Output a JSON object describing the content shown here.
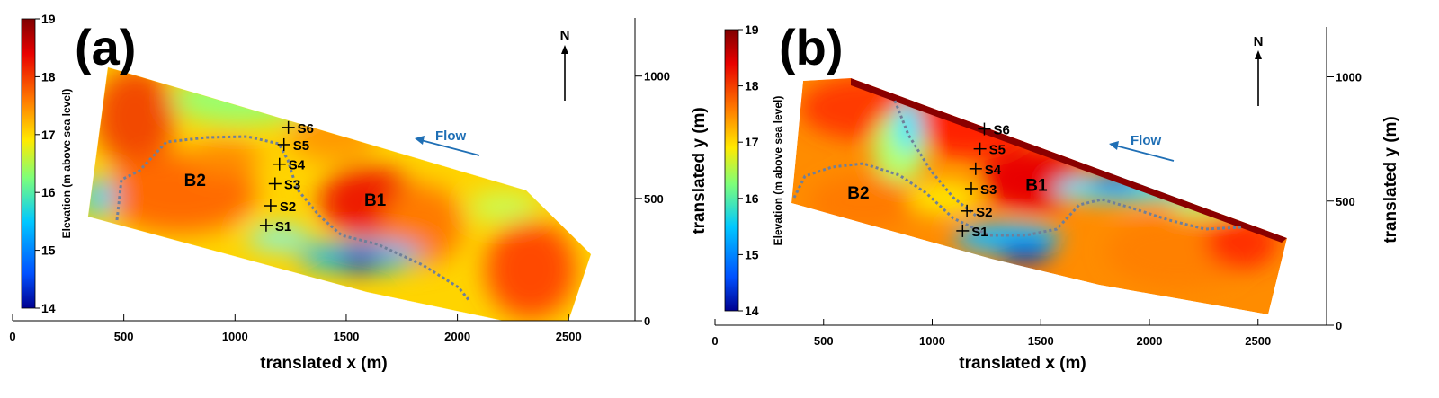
{
  "chart_data": [
    {
      "type": "heatmap",
      "panel_label": "(a)",
      "xlabel": "translated x (m)",
      "ylabel": "translated y (m)",
      "colorbar_label": "Elevation (m above sea level)",
      "xlim": [
        0,
        2800
      ],
      "ylim": [
        0,
        1200
      ],
      "x_ticks": [
        0,
        500,
        1000,
        1500,
        2000,
        2500
      ],
      "y_ticks": [
        0,
        500,
        1000
      ],
      "colorbar_range": [
        14,
        19
      ],
      "colorbar_ticks": [
        14,
        15,
        16,
        17,
        18,
        19
      ],
      "north_label": "N",
      "flow_label": "Flow",
      "survey_points": [
        {
          "label": "S1",
          "x": 1140,
          "y": 390
        },
        {
          "label": "S2",
          "x": 1160,
          "y": 470
        },
        {
          "label": "S3",
          "x": 1180,
          "y": 560
        },
        {
          "label": "S4",
          "x": 1200,
          "y": 640
        },
        {
          "label": "S5",
          "x": 1220,
          "y": 720
        },
        {
          "label": "S6",
          "x": 1240,
          "y": 790
        }
      ],
      "region_labels": [
        {
          "label": "B1",
          "x": 1630,
          "y": 470
        },
        {
          "label": "B2",
          "x": 820,
          "y": 550
        }
      ]
    },
    {
      "type": "heatmap",
      "panel_label": "(b)",
      "xlabel": "translated x (m)",
      "ylabel": "translated y (m)",
      "colorbar_label": "Elevation (m above sea level)",
      "xlim": [
        0,
        2800
      ],
      "ylim": [
        0,
        1200
      ],
      "x_ticks": [
        0,
        500,
        1000,
        1500,
        2000,
        2500
      ],
      "y_ticks": [
        0,
        500,
        1000
      ],
      "colorbar_range": [
        14,
        19
      ],
      "colorbar_ticks": [
        14,
        15,
        16,
        17,
        18,
        19
      ],
      "north_label": "N",
      "flow_label": "Flow",
      "survey_points": [
        {
          "label": "S1",
          "x": 1140,
          "y": 380
        },
        {
          "label": "S2",
          "x": 1160,
          "y": 460
        },
        {
          "label": "S3",
          "x": 1180,
          "y": 550
        },
        {
          "label": "S4",
          "x": 1200,
          "y": 630
        },
        {
          "label": "S5",
          "x": 1220,
          "y": 710
        },
        {
          "label": "S6",
          "x": 1240,
          "y": 790
        }
      ],
      "region_labels": [
        {
          "label": "B1",
          "x": 1480,
          "y": 540
        },
        {
          "label": "B2",
          "x": 660,
          "y": 510
        }
      ]
    }
  ],
  "colors": {
    "colormap": [
      "#00008f",
      "#0050ff",
      "#00c8ff",
      "#7dff7a",
      "#ffea00",
      "#ff7a00",
      "#e80000",
      "#7f0000"
    ],
    "flow_arrow": "#1f6fb5",
    "boundary_dash": "#6f7f99",
    "text": "#000000"
  }
}
